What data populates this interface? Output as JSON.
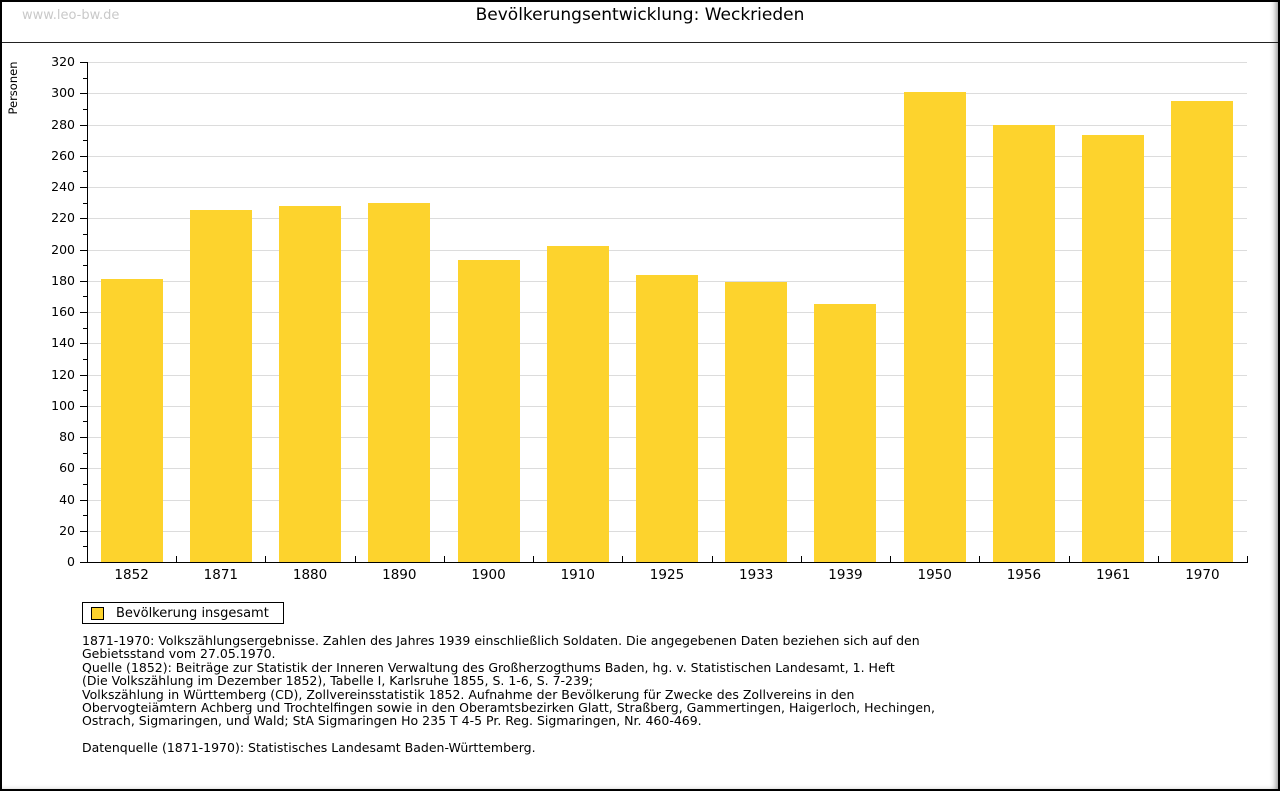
{
  "page": {
    "watermark": "www.leo-bw.de",
    "title": "Bevölkerungsentwicklung: Weckrieden"
  },
  "chart_data": {
    "type": "bar",
    "title": "Bevölkerungsentwicklung: Weckrieden",
    "xlabel": "",
    "ylabel": "Personen",
    "ylim": [
      0,
      320
    ],
    "ytick_step": 20,
    "yminor_step": 10,
    "grid": true,
    "legend_position": "bottom-left",
    "categories": [
      "1852",
      "1871",
      "1880",
      "1890",
      "1900",
      "1910",
      "1925",
      "1933",
      "1939",
      "1950",
      "1956",
      "1961",
      "1970"
    ],
    "series": [
      {
        "name": "Bevölkerung insgesamt",
        "values": [
          181,
          225,
          228,
          230,
          193,
          202,
          184,
          179,
          165,
          301,
          280,
          273,
          295
        ]
      }
    ],
    "colors": {
      "bar": "#FDD32D",
      "grid": "#DCDCDC",
      "axis": "#000000",
      "watermark": "#C9C9C9"
    }
  },
  "legend": {
    "label": "Bevölkerung insgesamt"
  },
  "footnotes": {
    "lines": [
      "1871-1970: Volkszählungsergebnisse. Zahlen des Jahres 1939 einschließlich Soldaten. Die angegebenen Daten beziehen sich auf den",
      "Gebietsstand vom 27.05.1970.",
      "Quelle (1852): Beiträge zur Statistik der Inneren Verwaltung des Großherzogthums Baden, hg. v. Statistischen Landesamt, 1. Heft",
      "(Die Volkszählung im Dezember 1852), Tabelle I, Karlsruhe 1855, S. 1-6, S. 7-239;",
      "Volkszählung in Württemberg (CD), Zollvereinsstatistik 1852. Aufnahme der Bevölkerung für Zwecke des Zollvereins in den",
      "Obervogteiämtern Achberg und Trochtelfingen sowie in den Oberamtsbezirken Glatt, Straßberg, Gammertingen, Haigerloch, Hechingen,",
      "Ostrach, Sigmaringen, und Wald; StA Sigmaringen Ho 235 T 4-5 Pr. Reg. Sigmaringen, Nr. 460-469."
    ],
    "datasource": "Datenquelle (1871-1970): Statistisches Landesamt Baden-Württemberg."
  }
}
